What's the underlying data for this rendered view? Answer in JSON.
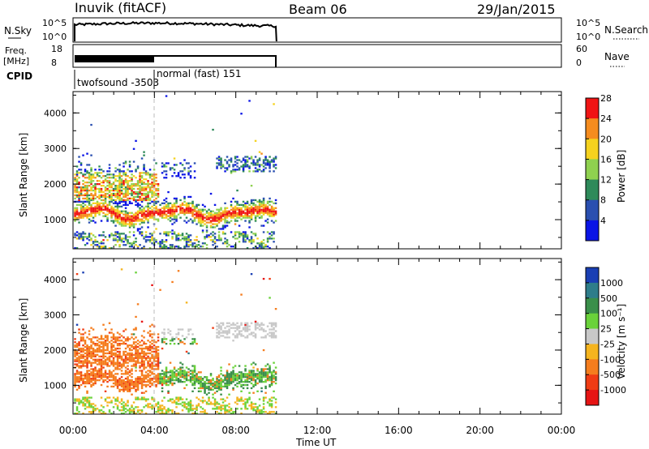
{
  "header": {
    "station": "Inuvik (fitACF)",
    "beam": "Beam 06",
    "date": "29/Jan/2015"
  },
  "top_panels": {
    "nsky": {
      "label": "N.Sky",
      "tick_top": "10^5",
      "tick_bottom": "10^0",
      "right_tick_top": "10^5",
      "right_tick_bottom": "10^0",
      "right_label": "N.Search"
    },
    "freq": {
      "label_line1": "Freq.",
      "label_line2": "[MHz]",
      "tick_top": "18",
      "tick_bottom": "8",
      "right_tick_top": "60",
      "right_tick_bottom": "0",
      "right_label": "Nave"
    },
    "cpid": {
      "label": "CPID",
      "mode1": "twofsound -3503",
      "mode2": "normal (fast) 151"
    }
  },
  "axes": {
    "ylabel": "Slant Range [km]",
    "yticks": [
      "1000",
      "2000",
      "3000",
      "4000"
    ],
    "xticks": [
      "00:00",
      "04:00",
      "08:00",
      "12:00",
      "16:00",
      "20:00",
      "00:00"
    ],
    "xlabel": "Time UT"
  },
  "chart_data": [
    {
      "type": "heatmap",
      "name": "power",
      "x_range_hours": [
        0,
        24
      ],
      "y_range_km": [
        180,
        4600
      ],
      "data_end_hour": 10,
      "mode_change_hour": 4,
      "colorbar": {
        "label": "Power [dB]",
        "ticks": [
          "4",
          "8",
          "12",
          "16",
          "20",
          "24",
          "28"
        ],
        "colors": [
          "#0a14e6",
          "#2a4fb0",
          "#2e8a5a",
          "#8fd14f",
          "#f5d21e",
          "#f58c1e",
          "#f01414"
        ]
      }
    },
    {
      "type": "heatmap",
      "name": "velocity",
      "x_range_hours": [
        0,
        24
      ],
      "y_range_km": [
        180,
        4600
      ],
      "data_end_hour": 10,
      "mode_change_hour": 4,
      "colorbar": {
        "label": "Velocity [m s⁻¹]",
        "ticks": [
          "1000",
          "500",
          "100",
          "25",
          "-25",
          "-100",
          "-500",
          "-1000"
        ],
        "colors": [
          "#1a3fb4",
          "#2e7d8a",
          "#3a8f4a",
          "#6ad23a",
          "#c8c8c8",
          "#f5b41e",
          "#f57d1e",
          "#f03c14",
          "#e61414"
        ]
      }
    }
  ]
}
